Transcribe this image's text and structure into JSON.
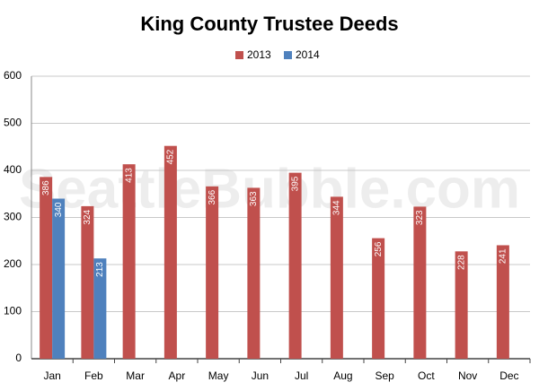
{
  "chart_data": {
    "type": "bar",
    "title": "King County Trustee Deeds",
    "watermark": "SeattleBubble.com",
    "categories": [
      "Jan",
      "Feb",
      "Mar",
      "Apr",
      "May",
      "Jun",
      "Jul",
      "Aug",
      "Sep",
      "Oct",
      "Nov",
      "Dec"
    ],
    "series": [
      {
        "name": "2013",
        "color": "#c0504d",
        "values": [
          386,
          324,
          413,
          452,
          366,
          363,
          395,
          344,
          256,
          323,
          228,
          241
        ]
      },
      {
        "name": "2014",
        "color": "#4f81bd",
        "values": [
          340,
          213,
          null,
          null,
          null,
          null,
          null,
          null,
          null,
          null,
          null,
          null
        ]
      }
    ],
    "ylim": [
      0,
      600
    ],
    "yticks": [
      0,
      100,
      200,
      300,
      400,
      500,
      600
    ],
    "grid": true,
    "legend": "top"
  }
}
